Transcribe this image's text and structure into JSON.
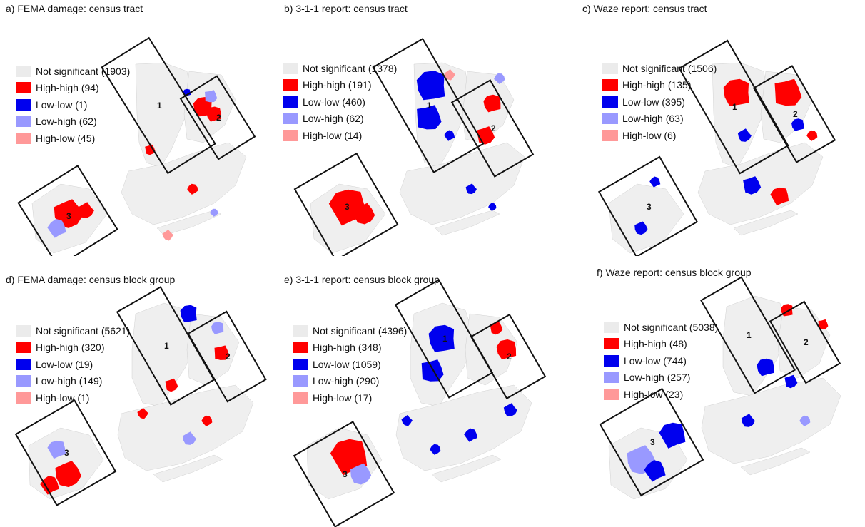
{
  "colors": {
    "not_significant": "#ebebeb",
    "high_high": "#ff0000",
    "low_low": "#0000ee",
    "low_high": "#9999ff",
    "high_low": "#ff9999",
    "land": "#efefef",
    "outline": "#111111"
  },
  "zone_labels": [
    "1",
    "2",
    "3"
  ],
  "panels": [
    {
      "title": "a)  FEMA damage: census tract",
      "legend": [
        {
          "label": "Not significant (1903)",
          "category": "not_significant"
        },
        {
          "label": "High-high (94)",
          "category": "high_high"
        },
        {
          "label": "Low-low (1)",
          "category": "low_low"
        },
        {
          "label": "Low-high (62)",
          "category": "low_high"
        },
        {
          "label": "High-low (45)",
          "category": "high_low"
        }
      ]
    },
    {
      "title": "b)  3-1-1 report: census tract",
      "legend": [
        {
          "label": "Not significant (1378)",
          "category": "not_significant"
        },
        {
          "label": "High-high (191)",
          "category": "high_high"
        },
        {
          "label": "Low-low (460)",
          "category": "low_low"
        },
        {
          "label": "Low-high (62)",
          "category": "low_high"
        },
        {
          "label": "High-low (14)",
          "category": "high_low"
        }
      ]
    },
    {
      "title": "c)  Waze report: census tract",
      "legend": [
        {
          "label": "Not significant (1506)",
          "category": "not_significant"
        },
        {
          "label": "High-high (135)",
          "category": "high_high"
        },
        {
          "label": "Low-low (395)",
          "category": "low_low"
        },
        {
          "label": "Low-high (63)",
          "category": "low_high"
        },
        {
          "label": "High-low (6)",
          "category": "high_low"
        }
      ]
    },
    {
      "title": "d)  FEMA damage: census block group",
      "legend": [
        {
          "label": "Not significant (5621)",
          "category": "not_significant"
        },
        {
          "label": "High-high (320)",
          "category": "high_high"
        },
        {
          "label": "Low-low (19)",
          "category": "low_low"
        },
        {
          "label": "Low-high (149)",
          "category": "low_high"
        },
        {
          "label": "High-low (1)",
          "category": "high_low"
        }
      ]
    },
    {
      "title": "e)  3-1-1 report: census block group",
      "legend": [
        {
          "label": "Not significant (4396)",
          "category": "not_significant"
        },
        {
          "label": "High-high (348)",
          "category": "high_high"
        },
        {
          "label": "Low-low (1059)",
          "category": "low_low"
        },
        {
          "label": "Low-high (290)",
          "category": "low_high"
        },
        {
          "label": "High-low (17)",
          "category": "high_low"
        }
      ]
    },
    {
      "title": "f)  Waze report: census block group",
      "legend": [
        {
          "label": "Not significant (5038)",
          "category": "not_significant"
        },
        {
          "label": "High-high (48)",
          "category": "high_high"
        },
        {
          "label": "Low-low (744)",
          "category": "low_low"
        },
        {
          "label": "Low-high (257)",
          "category": "low_high"
        },
        {
          "label": "High-low (23)",
          "category": "high_low"
        }
      ]
    }
  ]
}
